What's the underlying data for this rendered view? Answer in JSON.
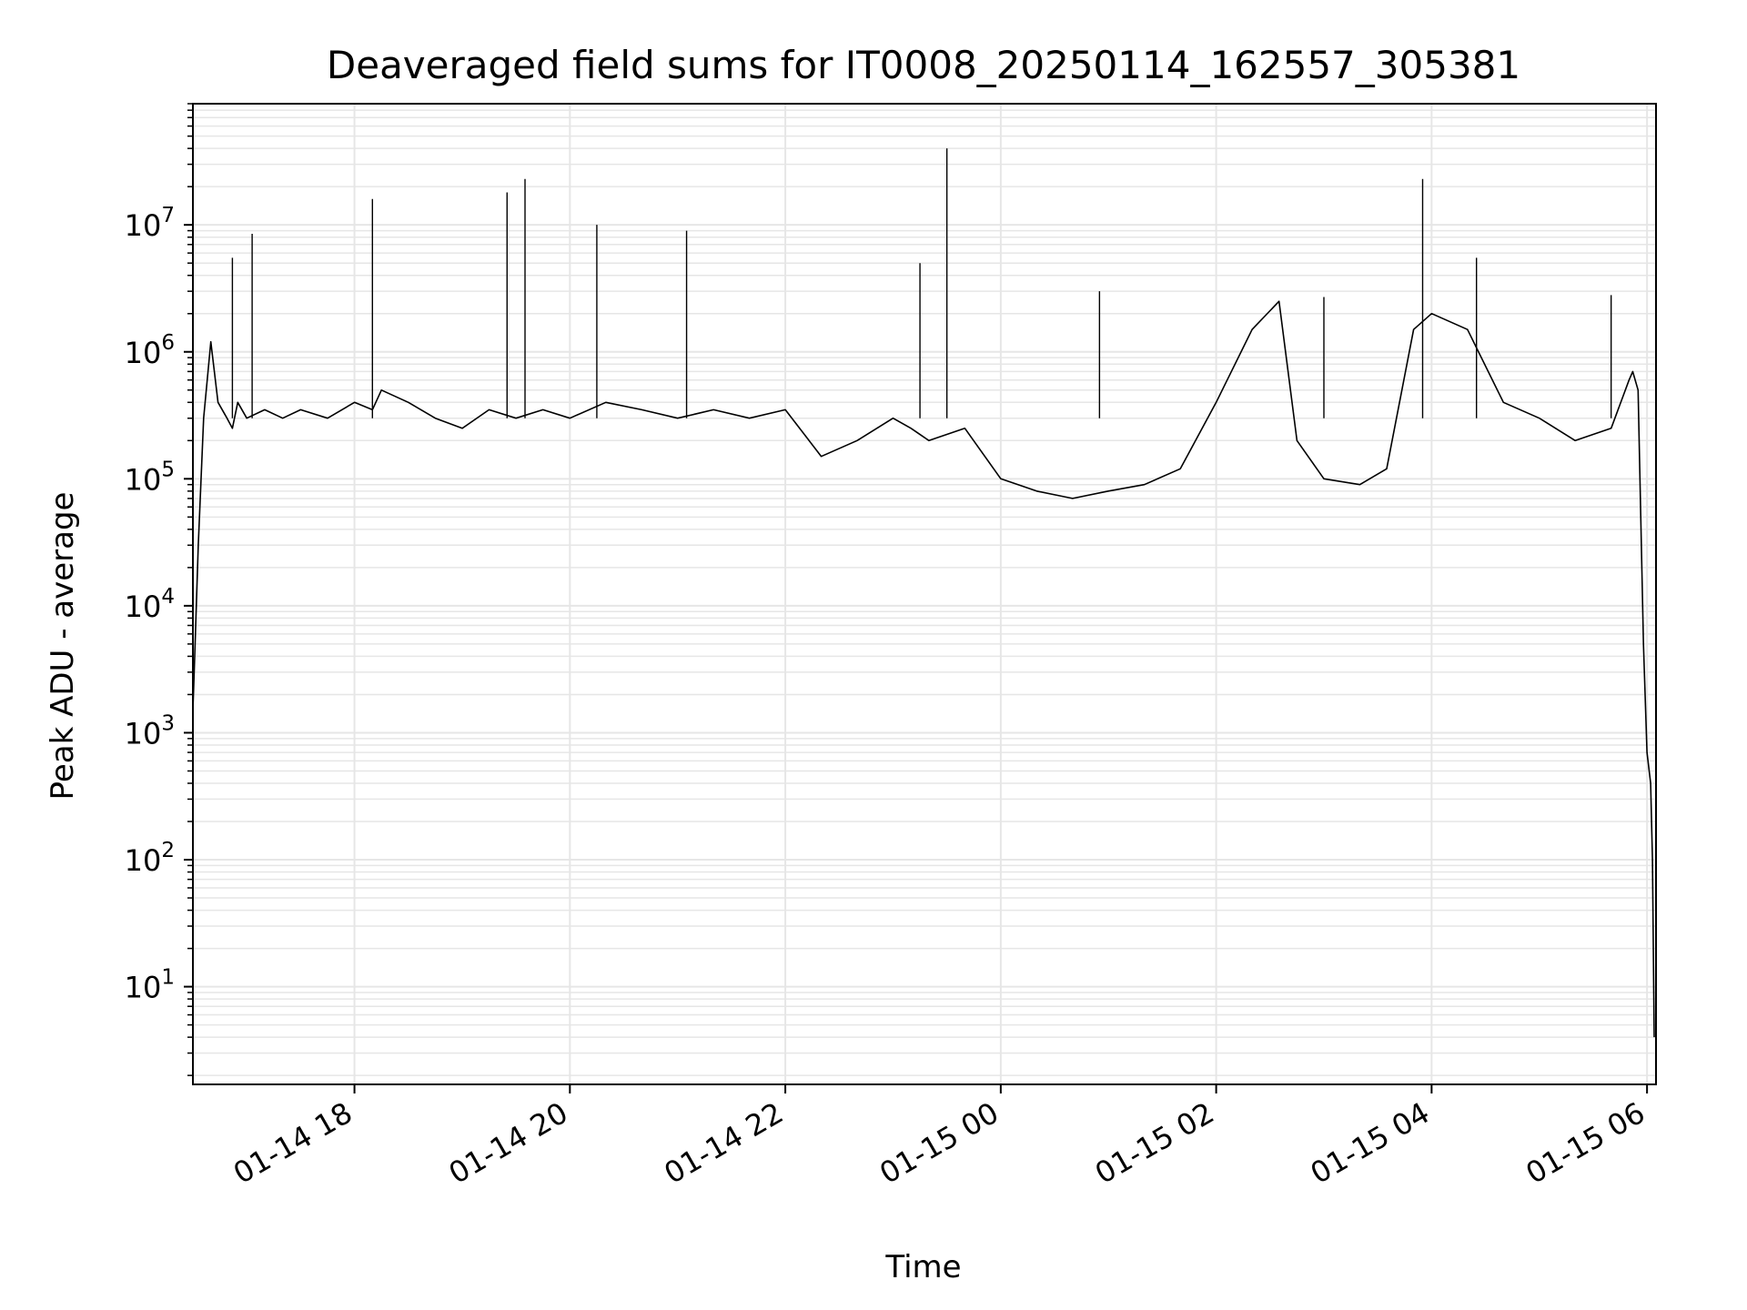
{
  "chart_data": {
    "type": "line",
    "title": "Deaveraged field sums for IT0008_20250114_162557_305381",
    "xlabel": "Time",
    "ylabel": "Peak ADU - average",
    "yscale": "log",
    "ylim": [
      1.7,
      90000000
    ],
    "xlim": [
      "2025-01-14T16:30",
      "2025-01-15T06:05"
    ],
    "grid": true,
    "line_color": "#000000",
    "grid_color": "#e6e6e6",
    "x_ticks": [
      {
        "value": "2025-01-14T18:00",
        "label": "01-14 18"
      },
      {
        "value": "2025-01-14T20:00",
        "label": "01-14 20"
      },
      {
        "value": "2025-01-14T22:00",
        "label": "01-14 22"
      },
      {
        "value": "2025-01-15T00:00",
        "label": "01-15 00"
      },
      {
        "value": "2025-01-15T02:00",
        "label": "01-15 02"
      },
      {
        "value": "2025-01-15T04:00",
        "label": "01-15 04"
      },
      {
        "value": "2025-01-15T06:00",
        "label": "01-15 06"
      }
    ],
    "y_ticks": [
      {
        "value": 10,
        "base": "10",
        "exp": "1"
      },
      {
        "value": 100,
        "base": "10",
        "exp": "2"
      },
      {
        "value": 1000,
        "base": "10",
        "exp": "3"
      },
      {
        "value": 10000,
        "base": "10",
        "exp": "4"
      },
      {
        "value": 100000,
        "base": "10",
        "exp": "5"
      },
      {
        "value": 1000000,
        "base": "10",
        "exp": "6"
      },
      {
        "value": 10000000,
        "base": "10",
        "exp": "7"
      }
    ],
    "series": [
      {
        "x": [
          "2025-01-14T16:30",
          "2025-01-14T16:31",
          "2025-01-14T16:33",
          "2025-01-14T16:36",
          "2025-01-14T16:40",
          "2025-01-14T16:44",
          "2025-01-14T16:49",
          "2025-01-14T16:52",
          "2025-01-14T16:55",
          "2025-01-14T17:00",
          "2025-01-14T17:10",
          "2025-01-14T17:20",
          "2025-01-14T17:30",
          "2025-01-14T17:45",
          "2025-01-14T18:00",
          "2025-01-14T18:10",
          "2025-01-14T18:15",
          "2025-01-14T18:30",
          "2025-01-14T18:45",
          "2025-01-14T19:00",
          "2025-01-14T19:15",
          "2025-01-14T19:30",
          "2025-01-14T19:45",
          "2025-01-14T20:00",
          "2025-01-14T20:20",
          "2025-01-14T20:40",
          "2025-01-14T21:00",
          "2025-01-14T21:20",
          "2025-01-14T21:40",
          "2025-01-14T22:00",
          "2025-01-14T22:20",
          "2025-01-14T22:40",
          "2025-01-14T23:00",
          "2025-01-14T23:10",
          "2025-01-14T23:20",
          "2025-01-14T23:40",
          "2025-01-15T00:00",
          "2025-01-15T00:20",
          "2025-01-15T00:40",
          "2025-01-15T01:00",
          "2025-01-15T01:20",
          "2025-01-15T01:40",
          "2025-01-15T02:00",
          "2025-01-15T02:20",
          "2025-01-15T02:35",
          "2025-01-15T02:45",
          "2025-01-15T03:00",
          "2025-01-15T03:20",
          "2025-01-15T03:35",
          "2025-01-15T03:50",
          "2025-01-15T04:00",
          "2025-01-15T04:20",
          "2025-01-15T04:40",
          "2025-01-15T05:00",
          "2025-01-15T05:20",
          "2025-01-15T05:40",
          "2025-01-15T05:50",
          "2025-01-15T05:52",
          "2025-01-15T05:55",
          "2025-01-15T05:58",
          "2025-01-15T06:00",
          "2025-01-15T06:02",
          "2025-01-15T06:03",
          "2025-01-15T06:04"
        ],
        "y": [
          1500,
          4000,
          30000,
          300000,
          1200000,
          400000,
          300000,
          250000,
          400000,
          300000,
          350000,
          300000,
          350000,
          300000,
          400000,
          350000,
          500000,
          400000,
          300000,
          250000,
          350000,
          300000,
          350000,
          300000,
          400000,
          350000,
          300000,
          350000,
          300000,
          350000,
          150000,
          200000,
          300000,
          250000,
          200000,
          250000,
          100000,
          80000,
          70000,
          80000,
          90000,
          120000,
          400000,
          1500000,
          2500000,
          200000,
          100000,
          90000,
          120000,
          1500000,
          2000000,
          1500000,
          400000,
          300000,
          200000,
          250000,
          600000,
          700000,
          500000,
          5000,
          700,
          400,
          100,
          4
        ]
      }
    ],
    "spikes": [
      {
        "x": "2025-01-14T16:52",
        "y": 5500000
      },
      {
        "x": "2025-01-14T17:03",
        "y": 8500000
      },
      {
        "x": "2025-01-14T18:10",
        "y": 16000000
      },
      {
        "x": "2025-01-14T19:25",
        "y": 18000000
      },
      {
        "x": "2025-01-14T19:35",
        "y": 23000000
      },
      {
        "x": "2025-01-14T20:15",
        "y": 10000000
      },
      {
        "x": "2025-01-14T21:05",
        "y": 9000000
      },
      {
        "x": "2025-01-14T23:15",
        "y": 5000000
      },
      {
        "x": "2025-01-14T23:30",
        "y": 40000000
      },
      {
        "x": "2025-01-15T00:55",
        "y": 3000000
      },
      {
        "x": "2025-01-15T03:00",
        "y": 2700000
      },
      {
        "x": "2025-01-15T03:55",
        "y": 23000000
      },
      {
        "x": "2025-01-15T04:25",
        "y": 5500000
      },
      {
        "x": "2025-01-15T05:40",
        "y": 2800000
      }
    ]
  }
}
